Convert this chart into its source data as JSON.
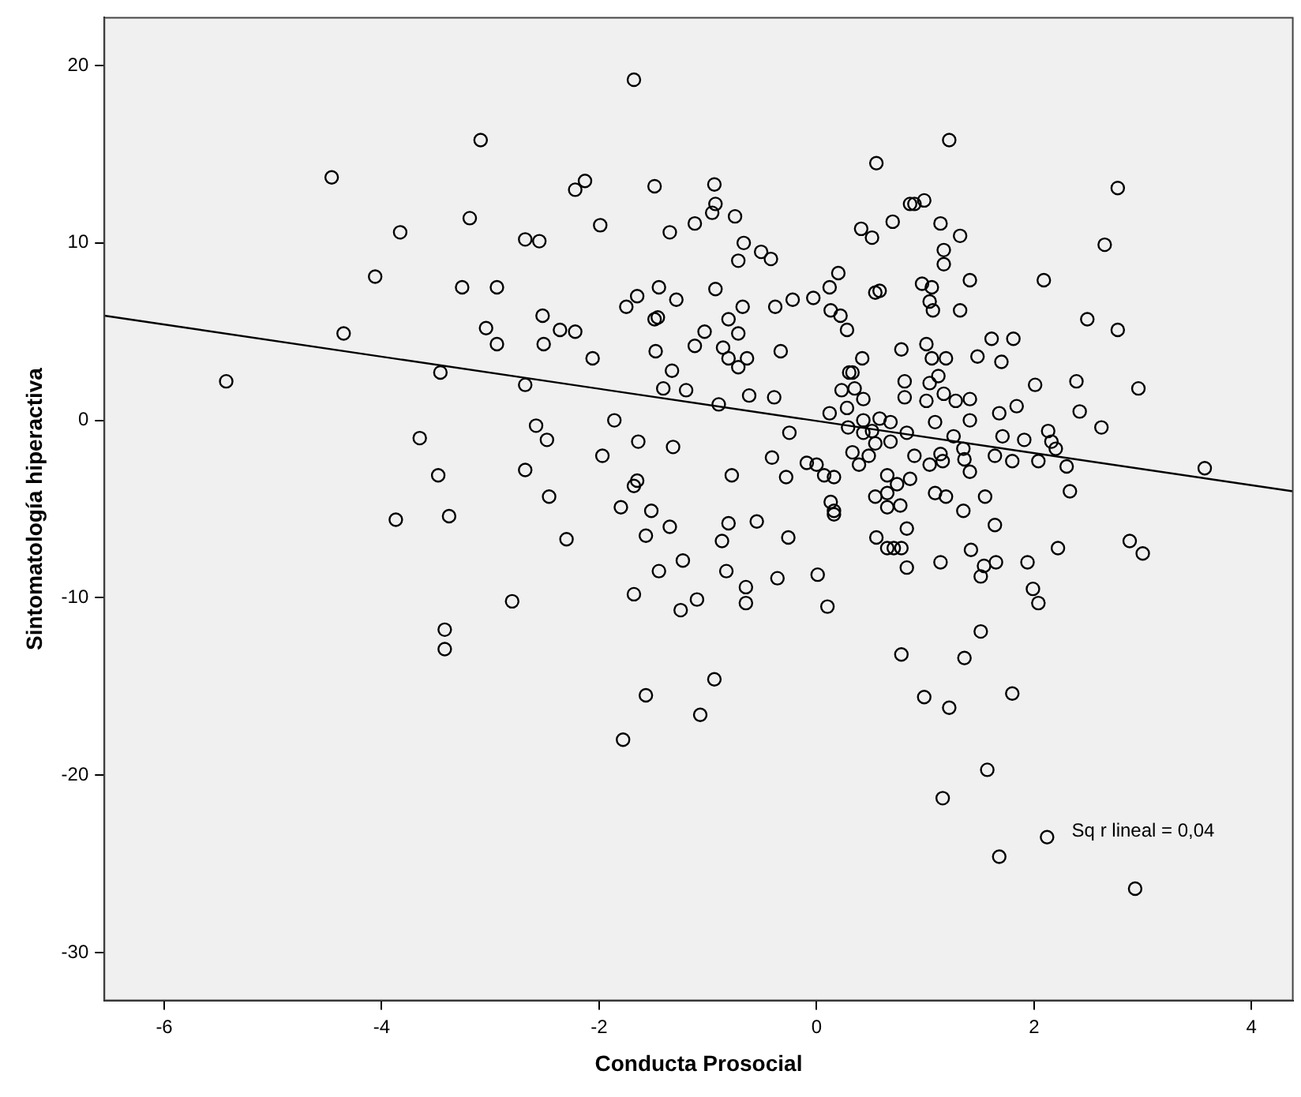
{
  "chart_data": {
    "type": "scatter",
    "xlabel": "Conducta Prosocial",
    "ylabel": "Sintomatología hiperactiva",
    "xlim": [
      -6.55,
      4.38
    ],
    "xticks": [
      -6,
      -4,
      -2,
      0,
      2,
      4
    ],
    "ylim": [
      -32.7,
      22.7
    ],
    "yticks": [
      -30,
      -20,
      -10,
      0,
      10,
      20
    ],
    "grid": false,
    "legend": false,
    "marker": "circle",
    "annotations": [
      "Sq r lineal = 0,04"
    ],
    "series": [
      {
        "color": "#000000",
        "x": [
          -3.09,
          -4.46,
          -3.19,
          -3.83,
          -4.06,
          -3.26,
          -2.94,
          -4.35,
          -3.04,
          -2.94,
          -3.46,
          -5.43,
          -3.65,
          -3.48,
          -3.38,
          -3.87,
          -2.8,
          -3.42,
          -3.42,
          -1.68,
          0.55,
          -2.22,
          -2.13,
          -1.49,
          -0.94,
          -0.93,
          -0.96,
          -1.12,
          -0.75,
          -1.99,
          -1.35,
          -2.68,
          -2.55,
          0.41,
          0.51,
          0.7,
          0.86,
          -0.67,
          -0.51,
          -0.42,
          -0.72,
          0.2,
          0.12,
          0.54,
          0.58,
          -1.45,
          -0.93,
          -1.65,
          -1.75,
          -1.29,
          -0.22,
          -0.03,
          -0.38,
          -0.68,
          -1.49,
          -1.46,
          -2.52,
          -2.36,
          -2.22,
          -2.51,
          -0.81,
          0.13,
          0.22,
          0.28,
          -1.03,
          -0.72,
          -1.12,
          -0.86,
          -0.81,
          -0.64,
          -0.72,
          -1.48,
          -2.06,
          -0.33,
          0.78,
          0.42,
          -1.33,
          -1.41,
          -1.2,
          -2.68,
          0.3,
          0.33,
          0.23,
          0.35,
          0.43,
          0.81,
          0.81,
          -0.62,
          -0.39,
          -0.9,
          0.12,
          0.28,
          0.29,
          0.43,
          0.51,
          0.58,
          0.68,
          0.68,
          0.54,
          0.83,
          0.43,
          -0.25,
          -1.86,
          -2.58,
          -2.48,
          -1.64,
          -1.32,
          -1.97,
          -2.68,
          -0.41,
          -0.09,
          0.0,
          0.07,
          0.16,
          -0.28,
          -0.78,
          0.33,
          0.39,
          0.48,
          0.65,
          0.74,
          0.54,
          0.65,
          0.65,
          0.77,
          -1.65,
          -1.68,
          -2.46,
          -1.8,
          -1.52,
          0.13,
          0.16,
          1.22,
          2.77,
          2.65,
          0.9,
          0.99,
          1.14,
          1.32,
          1.17,
          1.17,
          1.41,
          2.09,
          0.97,
          1.06,
          1.04,
          1.07,
          1.32,
          2.49,
          2.77,
          1.61,
          1.81,
          1.7,
          1.48,
          1.01,
          1.06,
          1.19,
          1.12,
          1.04,
          1.01,
          1.17,
          1.28,
          1.41,
          2.01,
          2.39,
          2.96,
          1.84,
          1.68,
          2.42,
          2.62,
          1.09,
          1.41,
          1.26,
          1.71,
          1.91,
          2.13,
          2.16,
          2.2,
          0.9,
          1.14,
          1.16,
          1.04,
          1.35,
          1.36,
          1.41,
          1.64,
          1.8,
          2.04,
          2.3,
          2.33,
          3.57,
          0.86,
          1.09,
          1.19,
          1.55,
          1.35,
          -2.3,
          -1.57,
          -1.35,
          -0.81,
          -0.55,
          -0.87,
          -0.26,
          -1.23,
          -1.45,
          -0.83,
          -0.65,
          -0.65,
          -0.36,
          0.01,
          0.1,
          -1.68,
          -1.1,
          -1.25,
          -0.94,
          -1.57,
          -1.07,
          -1.78,
          0.16,
          0.55,
          0.65,
          0.71,
          0.78,
          0.83,
          0.78,
          0.83,
          1.14,
          1.64,
          1.42,
          1.54,
          1.51,
          1.65,
          1.94,
          2.22,
          1.99,
          2.04,
          2.88,
          3.0,
          1.51,
          1.36,
          1.8,
          0.99,
          1.22,
          1.57,
          1.16,
          2.12,
          1.68,
          2.93
        ],
        "values": [
          15.8,
          13.7,
          11.4,
          10.6,
          8.1,
          7.5,
          7.5,
          4.9,
          5.2,
          4.3,
          2.7,
          2.2,
          -1.0,
          -3.1,
          -5.4,
          -5.6,
          -10.2,
          -11.8,
          -12.9,
          19.2,
          14.5,
          13.0,
          13.5,
          13.2,
          13.3,
          12.2,
          11.7,
          11.1,
          11.5,
          11.0,
          10.6,
          10.2,
          10.1,
          10.8,
          10.3,
          11.2,
          12.2,
          10.0,
          9.5,
          9.1,
          9.0,
          8.3,
          7.5,
          7.2,
          7.3,
          7.5,
          7.4,
          7.0,
          6.4,
          6.8,
          6.8,
          6.9,
          6.4,
          6.4,
          5.7,
          5.8,
          5.9,
          5.1,
          5.0,
          4.3,
          5.7,
          6.2,
          5.9,
          5.1,
          5.0,
          4.9,
          4.2,
          4.1,
          3.5,
          3.5,
          3.0,
          3.9,
          3.5,
          3.9,
          4.0,
          3.5,
          2.8,
          1.8,
          1.7,
          2.0,
          2.7,
          2.7,
          1.7,
          1.8,
          1.2,
          2.2,
          1.3,
          1.4,
          1.3,
          0.9,
          0.4,
          0.7,
          -0.4,
          0.0,
          -0.6,
          0.1,
          -0.1,
          -1.2,
          -1.3,
          -0.7,
          -0.7,
          -0.7,
          0.0,
          -0.3,
          -1.1,
          -1.2,
          -1.5,
          -2.0,
          -2.8,
          -2.1,
          -2.4,
          -2.5,
          -3.1,
          -3.2,
          -3.2,
          -3.1,
          -1.8,
          -2.5,
          -2.0,
          -3.1,
          -3.6,
          -4.3,
          -4.1,
          -4.9,
          -4.8,
          -3.4,
          -3.7,
          -4.3,
          -4.9,
          -5.1,
          -4.6,
          -5.1,
          15.8,
          13.1,
          9.9,
          12.2,
          12.4,
          11.1,
          10.4,
          9.6,
          8.8,
          7.9,
          7.9,
          7.7,
          7.5,
          6.7,
          6.2,
          6.2,
          5.7,
          5.1,
          4.6,
          4.6,
          3.3,
          3.6,
          4.3,
          3.5,
          3.5,
          2.5,
          2.1,
          1.1,
          1.5,
          1.1,
          1.2,
          2.0,
          2.2,
          1.8,
          0.8,
          0.4,
          0.5,
          -0.4,
          -0.1,
          0.0,
          -0.9,
          -0.9,
          -1.1,
          -0.6,
          -1.2,
          -1.6,
          -2.0,
          -1.9,
          -2.3,
          -2.5,
          -1.6,
          -2.2,
          -2.9,
          -2.0,
          -2.3,
          -2.3,
          -2.6,
          -4.0,
          -2.7,
          -3.3,
          -4.1,
          -4.3,
          -4.3,
          -5.1,
          -6.7,
          -6.5,
          -6.0,
          -5.8,
          -5.7,
          -6.8,
          -6.6,
          -7.9,
          -8.5,
          -8.5,
          -9.4,
          -10.3,
          -8.9,
          -8.7,
          -10.5,
          -9.8,
          -10.1,
          -10.7,
          -14.6,
          -15.5,
          -16.6,
          -18.0,
          -5.3,
          -6.6,
          -7.2,
          -7.2,
          -7.2,
          -8.3,
          -13.2,
          -6.1,
          -8.0,
          -5.9,
          -7.3,
          -8.2,
          -8.8,
          -8.0,
          -8.0,
          -7.2,
          -9.5,
          -10.3,
          -6.8,
          -7.5,
          -11.9,
          -13.4,
          -15.4,
          -15.6,
          -16.2,
          -19.7,
          -21.3,
          -23.5,
          -24.6,
          -26.4
        ]
      },
      {
        "type": "line",
        "color": "#000000",
        "marker": "none",
        "x": [
          -6.55,
          4.38
        ],
        "values": [
          5.9,
          -4.0
        ]
      }
    ]
  }
}
